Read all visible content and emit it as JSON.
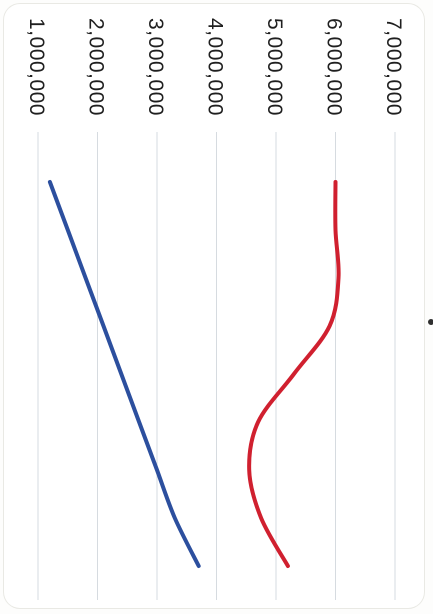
{
  "chart_data": {
    "type": "line",
    "orientation": "rotated-90-clockwise",
    "y_ticks": [
      "1,000,000",
      "2,000,000",
      "3,000,000",
      "4,000,000",
      "5,000,000",
      "6,000,000",
      "7,000,000"
    ],
    "ylim": [
      1000000,
      7000000
    ],
    "x_points": [
      0,
      1,
      2,
      3,
      4,
      5,
      6,
      7,
      8
    ],
    "grid": true,
    "series": [
      {
        "color": "#d0202f",
        "values": [
          6000000,
          6000000,
          6050000,
          5900000,
          5300000,
          4700000,
          4550000,
          4750000,
          5200000
        ]
      },
      {
        "color": "#2c4f9e",
        "values": [
          1200000,
          1500000,
          1800000,
          2100000,
          2400000,
          2700000,
          3000000,
          3300000,
          3700000
        ]
      }
    ]
  },
  "colors": {
    "red_series": "#d0202f",
    "blue_series": "#2c4f9e",
    "grid": "#d6dbe0"
  }
}
